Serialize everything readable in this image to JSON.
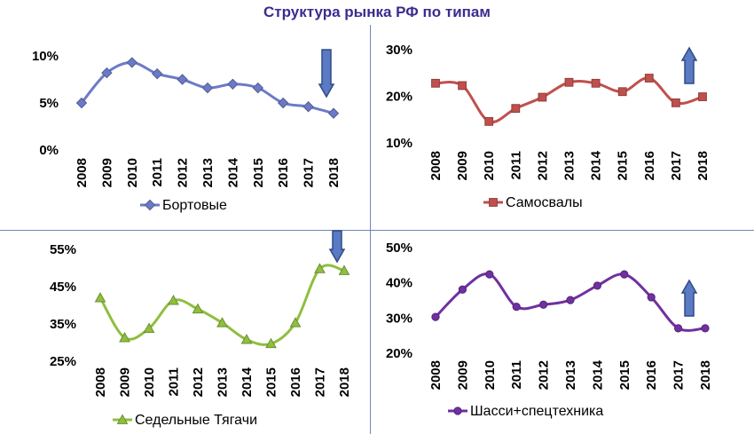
{
  "title": "Структура рынка РФ по типам",
  "colors": {
    "title": "#3d2b8f",
    "arrow_fill": "#5b7ac4",
    "arrow_stroke": "#2f4a86"
  },
  "chart_data": [
    {
      "type": "line",
      "legend": "Бортовые",
      "color": "#6c7ac6",
      "marker": "diamond",
      "x": [
        "2008",
        "2009",
        "2010",
        "2011",
        "2012",
        "2013",
        "2014",
        "2015",
        "2016",
        "2017",
        "2018"
      ],
      "values": [
        5.0,
        8.2,
        9.3,
        8.1,
        7.5,
        6.6,
        7.0,
        6.6,
        5.0,
        4.6,
        3.9
      ],
      "y_ticks": [
        "0%",
        "5%",
        "10%"
      ],
      "ylim": [
        0,
        10
      ],
      "arrow": "down",
      "legend_position": "bottom"
    },
    {
      "type": "line",
      "legend": "Самосвалы",
      "color": "#c0504d",
      "marker": "square",
      "x": [
        "2008",
        "2009",
        "2010",
        "2011",
        "2012",
        "2013",
        "2014",
        "2015",
        "2016",
        "2017",
        "2018"
      ],
      "values": [
        22.8,
        22.3,
        14.6,
        17.4,
        19.8,
        23.0,
        22.8,
        21.0,
        23.9,
        18.6,
        19.9
      ],
      "y_ticks": [
        "10%",
        "20%",
        "30%"
      ],
      "ylim": [
        10,
        30
      ],
      "arrow": "up",
      "legend_position": "bottom"
    },
    {
      "type": "line",
      "legend": "Седельные Тягачи",
      "color": "#8fbf3f",
      "marker": "triangle",
      "x": [
        "2008",
        "2009",
        "2010",
        "2011",
        "2012",
        "2013",
        "2014",
        "2015",
        "2016",
        "2017",
        "2018"
      ],
      "values": [
        42.0,
        31.3,
        33.8,
        41.3,
        39.0,
        35.3,
        30.8,
        29.7,
        35.3,
        49.8,
        49.3
      ],
      "y_ticks": [
        "25%",
        "35%",
        "45%",
        "55%"
      ],
      "ylim": [
        25,
        55
      ],
      "arrow": "down",
      "legend_position": "bottom"
    },
    {
      "type": "line",
      "legend": "Шасси+спецтехника",
      "color": "#7030a0",
      "marker": "circle",
      "x": [
        "2008",
        "2009",
        "2010",
        "2011",
        "2012",
        "2013",
        "2014",
        "2015",
        "2016",
        "2017",
        "2018"
      ],
      "values": [
        30.3,
        38.1,
        42.4,
        33.2,
        33.8,
        35.1,
        39.2,
        42.4,
        35.9,
        27.1,
        27.1
      ],
      "y_ticks": [
        "20%",
        "30%",
        "40%",
        "50%"
      ],
      "ylim": [
        20,
        50
      ],
      "arrow": "up",
      "legend_position": "bottom"
    }
  ]
}
